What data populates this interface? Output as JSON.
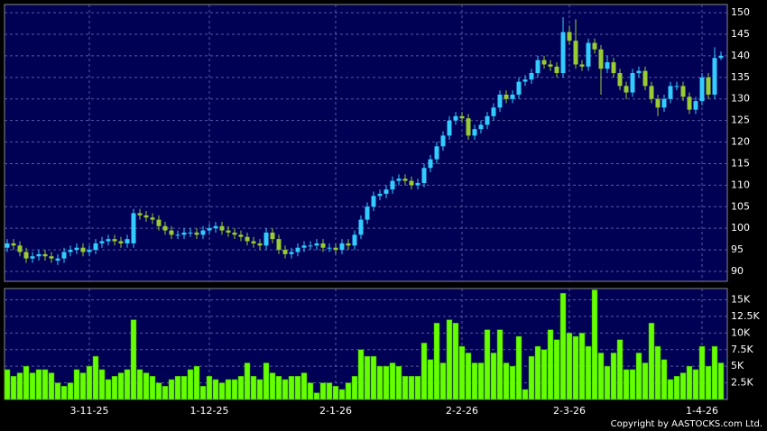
{
  "chart_data": [
    {
      "type": "candlestick",
      "categories": [
        null,
        null,
        null,
        null,
        null,
        null,
        null,
        null,
        null,
        null,
        null,
        null,
        null,
        "3-11-25",
        null,
        null,
        null,
        null,
        null,
        null,
        null,
        null,
        null,
        null,
        null,
        null,
        null,
        null,
        null,
        null,
        null,
        null,
        "1-12-25",
        null,
        null,
        null,
        null,
        null,
        null,
        null,
        null,
        null,
        null,
        null,
        null,
        null,
        null,
        null,
        null,
        null,
        null,
        null,
        "2-1-26",
        null,
        null,
        null,
        null,
        null,
        null,
        null,
        null,
        null,
        null,
        null,
        null,
        null,
        null,
        null,
        null,
        null,
        null,
        null,
        "2-2-26",
        null,
        null,
        null,
        null,
        null,
        null,
        null,
        null,
        null,
        null,
        null,
        null,
        null,
        null,
        null,
        null,
        "2-3-26",
        null,
        null,
        null,
        null,
        null,
        null,
        null,
        null,
        null,
        null,
        null,
        null,
        null,
        null,
        null,
        null,
        null,
        null,
        null,
        null,
        "1-4-26",
        null,
        null,
        null
      ],
      "open": [
        95.5,
        96.5,
        96,
        94.5,
        93,
        93.5,
        94,
        93.5,
        92.5,
        93,
        94.5,
        95,
        95.5,
        94.5,
        95,
        96.5,
        97,
        97.5,
        97,
        96.5,
        96.5,
        103.5,
        103,
        102.5,
        102,
        100.5,
        99.5,
        98.5,
        98.5,
        99,
        99,
        98.5,
        99.5,
        100,
        100.5,
        99.5,
        99,
        98.5,
        98,
        97,
        96.5,
        96,
        99,
        97.5,
        95,
        94,
        94.5,
        95.5,
        96,
        96,
        96.5,
        95.5,
        95.5,
        95,
        96.5,
        96,
        98.5,
        102,
        105,
        107.5,
        108,
        109,
        111,
        111.5,
        111,
        110,
        110.5,
        114,
        116,
        119,
        121.5,
        125,
        126,
        125.5,
        121.5,
        123,
        124,
        126,
        128,
        131,
        130,
        131,
        134,
        134.5,
        136,
        139,
        138,
        137.5,
        136,
        145.5,
        143.5,
        138,
        137.5,
        143,
        141.5,
        137,
        138.5,
        136,
        133,
        131.5,
        136,
        136.5,
        133,
        130,
        128,
        130,
        133,
        133,
        130.5,
        127.5,
        129.5,
        135,
        131,
        139.5
      ],
      "high": [
        97.5,
        97.5,
        97,
        95.5,
        94.5,
        95,
        95,
        94.5,
        94,
        95.5,
        96,
        96.5,
        96.5,
        96,
        97.5,
        98,
        98.5,
        98.5,
        98,
        98.5,
        104.5,
        104.5,
        104,
        103.5,
        103,
        101.5,
        100.5,
        99.5,
        100,
        100,
        100,
        100.5,
        101,
        101.5,
        101.5,
        100.5,
        100,
        99.5,
        99,
        98,
        97.5,
        100,
        100,
        98.5,
        96,
        95.5,
        96.5,
        97,
        97,
        97.5,
        97.5,
        96.5,
        96.5,
        97.5,
        97.5,
        99.5,
        103,
        106,
        108.5,
        109,
        110,
        112,
        112.5,
        112.5,
        112,
        111.5,
        115,
        117,
        120,
        122.5,
        126,
        127,
        127,
        126.5,
        124,
        125,
        127,
        129,
        132,
        132,
        132,
        135,
        135.5,
        137,
        140,
        140,
        139,
        138.5,
        149,
        147,
        148.5,
        139,
        144,
        144,
        142.5,
        140,
        139.5,
        137,
        134,
        137,
        137.5,
        137.5,
        134,
        131,
        131,
        134,
        134,
        134,
        131.5,
        130.5,
        136,
        136,
        142,
        141
      ],
      "low": [
        94.5,
        95,
        93.5,
        92,
        92,
        92.5,
        92.5,
        92,
        91.5,
        92,
        93.5,
        94,
        93.5,
        93.5,
        94,
        95.5,
        96,
        96,
        95.5,
        95.5,
        95.5,
        102,
        101.5,
        101,
        99.5,
        98.5,
        97.5,
        97.5,
        97.5,
        98,
        97.5,
        97.5,
        98.5,
        99,
        98.5,
        98,
        97.5,
        97,
        96,
        95.5,
        95,
        95,
        96.5,
        94,
        93,
        93,
        93.5,
        94.5,
        95,
        95,
        94.5,
        94.5,
        94,
        94,
        95,
        95,
        97.5,
        101,
        104,
        106.5,
        107,
        108,
        110,
        110,
        109,
        109,
        109.5,
        113,
        115,
        118,
        120.5,
        124,
        124.5,
        120.5,
        120.5,
        122,
        123,
        125,
        127,
        129,
        129,
        130,
        133,
        133.5,
        135,
        137,
        136.5,
        135,
        135,
        142.5,
        137,
        136.5,
        136.5,
        140.5,
        131,
        136,
        135,
        132,
        130,
        130.5,
        135,
        132,
        129,
        126,
        127,
        129,
        132,
        129.5,
        126.5,
        126.5,
        128.5,
        130,
        130,
        139
      ],
      "close": [
        96.5,
        96,
        94.5,
        93,
        93.5,
        94,
        93.5,
        93,
        93,
        94.5,
        95,
        95.5,
        94.5,
        95,
        96.5,
        97,
        97.5,
        97,
        96.5,
        97.5,
        103.5,
        103,
        102.5,
        102,
        100.5,
        99.5,
        98.5,
        98.5,
        99,
        99,
        98.5,
        99.5,
        100,
        100.5,
        99.5,
        99,
        98.5,
        98,
        97,
        96.5,
        96,
        99,
        97.5,
        95,
        94,
        94.5,
        95.5,
        96,
        96,
        96.5,
        95.5,
        95.5,
        95,
        96.5,
        96,
        98.5,
        102,
        105,
        107.5,
        108,
        109,
        111,
        111.5,
        111,
        110,
        110.5,
        114,
        116,
        119,
        121.5,
        125,
        126,
        125.5,
        121.5,
        123,
        124,
        126,
        128,
        131,
        130,
        131,
        134,
        134.5,
        136,
        139,
        138,
        137.5,
        136,
        145.5,
        143.5,
        138,
        137.5,
        143,
        141.5,
        137,
        138.5,
        136,
        133,
        131.5,
        136,
        136.5,
        133,
        130,
        128,
        130,
        133,
        133,
        130.5,
        127.5,
        129.5,
        135,
        131,
        139.5,
        140
      ],
      "up_color": "#33ccff",
      "down_color": "#99cc33",
      "ylim": [
        87.7,
        151.9
      ],
      "yticks": [
        90,
        95,
        100,
        105,
        110,
        115,
        120,
        125,
        130,
        135,
        140,
        145,
        150
      ],
      "grid": true
    },
    {
      "type": "bar",
      "values": [
        4500,
        3500,
        4000,
        5000,
        4000,
        4500,
        4500,
        4000,
        2500,
        2000,
        2500,
        4500,
        4000,
        5000,
        6500,
        4500,
        3000,
        3500,
        4000,
        4500,
        12000,
        4500,
        4000,
        3500,
        2500,
        2000,
        3000,
        3500,
        3500,
        4500,
        5000,
        2000,
        3500,
        3000,
        2500,
        3000,
        3000,
        3500,
        5500,
        3500,
        3000,
        5500,
        4000,
        3500,
        3000,
        3500,
        3500,
        4000,
        2500,
        1000,
        2500,
        2500,
        2000,
        1500,
        2500,
        3500,
        7500,
        6500,
        6500,
        5000,
        5000,
        5500,
        5000,
        3500,
        3500,
        3500,
        8500,
        6000,
        11500,
        5500,
        12000,
        11500,
        8000,
        7000,
        5500,
        5500,
        10500,
        7000,
        10500,
        5500,
        5000,
        9500,
        1500,
        6500,
        8000,
        7500,
        10500,
        9000,
        16000,
        10000,
        9500,
        10000,
        8000,
        16500,
        7000,
        5000,
        7000,
        9000,
        4500,
        4500,
        7000,
        5500,
        11500,
        8000,
        6000,
        3000,
        3500,
        4000,
        5000,
        4500,
        8000,
        5000,
        8000,
        5500
      ],
      "color": "#66ff00",
      "ylim": [
        0,
        16700
      ],
      "yticks": [
        {
          "value": 2500,
          "label": "2.5K"
        },
        {
          "value": 5000,
          "label": "5K"
        },
        {
          "value": 7500,
          "label": "7.5K"
        },
        {
          "value": 10000,
          "label": "10K"
        },
        {
          "value": 12500,
          "label": "12.5K"
        },
        {
          "value": 15000,
          "label": "15K"
        }
      ],
      "grid": true
    }
  ],
  "footer": "Copyright by AASTOCKS.com Ltd."
}
